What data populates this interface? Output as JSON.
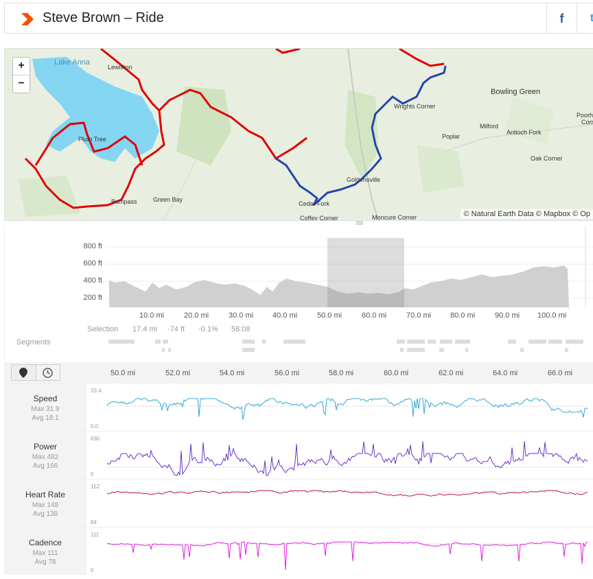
{
  "header": {
    "title": "Steve Brown – Ride",
    "facebook_label": "f",
    "twitter_label": "t"
  },
  "map": {
    "zoom_in": "+",
    "zoom_out": "−",
    "attribution": "© Natural Earth Data © Mapbox © Op",
    "labels": [
      "Lake Anna",
      "Lewiston",
      "Plum Tree",
      "Bumpass",
      "Green Bay",
      "Cedar Fork",
      "Coffey Corner",
      "Goldensville",
      "Moncure Corner",
      "Wrights Corner",
      "Bowling Green",
      "Milford",
      "Poplar",
      "Antioch Fork",
      "Oak Corner",
      "Poorh",
      "Corn"
    ]
  },
  "elevation": {
    "y_labels": [
      "800 ft",
      "600 ft",
      "400 ft",
      "200 ft"
    ],
    "x_labels": [
      "10.0 mi",
      "20.0 mi",
      "30.0 mi",
      "40.0 mi",
      "50.0 mi",
      "60.0 mi",
      "70.0 mi",
      "80.0 mi",
      "90.0 mi",
      "100.0 mi"
    ],
    "selection": {
      "label": "Selection",
      "distance": "17.4 mi",
      "elev_gain": "-74 ft",
      "grade": "-0.1%",
      "time": "58:08"
    },
    "segments_label": "Segments"
  },
  "streams": {
    "tab_icons": [
      "map-pin-icon",
      "clock-icon"
    ],
    "x_labels": [
      "50.0 mi",
      "52.0 mi",
      "54.0 mi",
      "56.0 mi",
      "58.0 mi",
      "60.0 mi",
      "62.0 mi",
      "64.0 mi",
      "66.0 mi"
    ],
    "rows": [
      {
        "name": "Speed",
        "max": "Max 31.9",
        "avg": "Avg 18.1",
        "top": "33.4",
        "bottom": "0.0",
        "color": "#34a6d9"
      },
      {
        "name": "Power",
        "max": "Max 482",
        "avg": "Avg 166",
        "top": "690",
        "bottom": "0",
        "color": "#6a32c9"
      },
      {
        "name": "Heart Rate",
        "max": "Max 148",
        "avg": "Avg 138",
        "top": "152",
        "bottom": "84",
        "color": "#c4174a"
      },
      {
        "name": "Cadence",
        "max": "Max 111",
        "avg": "Avg 78",
        "top": "111",
        "bottom": "0",
        "color": "#e020e0"
      }
    ]
  },
  "colors": {
    "route_red": "#e00000",
    "route_blue": "#2645a8",
    "lake": "#7fd4f0",
    "brand": "#fc4c02"
  }
}
